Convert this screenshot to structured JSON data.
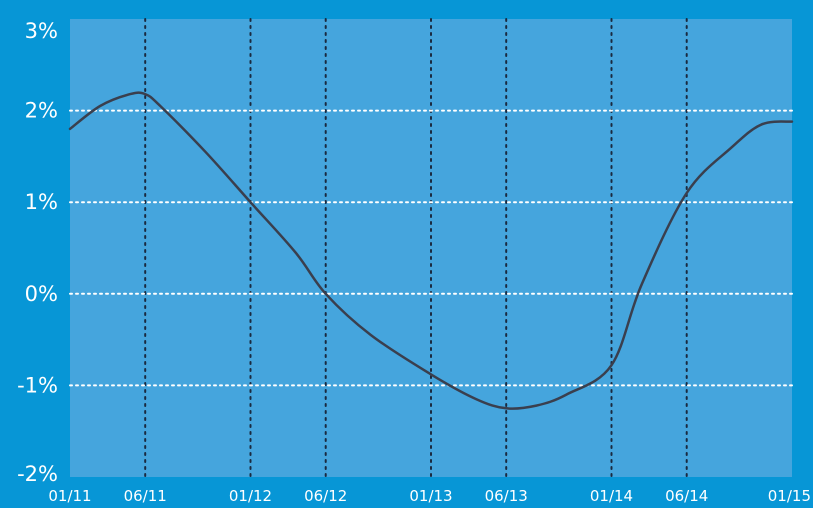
{
  "colors": {
    "background": "#0796d6",
    "plot_area": "#45a5dd",
    "grid_horizontal": "#ffffff",
    "grid_vertical": "#1a2a40",
    "line": "#3a3f4e",
    "tick_text": "#ffffff"
  },
  "chart_data": {
    "type": "line",
    "title": "",
    "xlabel": "",
    "ylabel": "",
    "x_tick_labels": [
      "01/11",
      "06/11",
      "01/12",
      "06/12",
      "01/13",
      "06/13",
      "01/14",
      "06/14",
      "01/15"
    ],
    "y_tick_labels": [
      "3%",
      "2%",
      "1%",
      "0%",
      "-1%",
      "-2%"
    ],
    "y_tick_values": [
      3,
      2,
      1,
      0,
      -1,
      -2
    ],
    "ylim": [
      -2,
      3
    ],
    "grid": true,
    "legend": "none",
    "series": [
      {
        "x": [
          "01/11",
          "03/11",
          "05/11",
          "06/11",
          "07/11",
          "10/11",
          "01/12",
          "04/12",
          "06/12",
          "09/12",
          "01/13",
          "04/13",
          "06/13",
          "08/13",
          "10/13",
          "01/14",
          "03/14",
          "06/14",
          "09/14",
          "11/14",
          "01/15"
        ],
        "values": [
          1.8,
          2.05,
          2.18,
          2.18,
          2.05,
          1.55,
          1.0,
          0.45,
          0.0,
          -0.45,
          -0.88,
          -1.15,
          -1.25,
          -1.22,
          -1.1,
          -0.78,
          0.1,
          1.1,
          1.6,
          1.85,
          1.88
        ]
      }
    ]
  }
}
